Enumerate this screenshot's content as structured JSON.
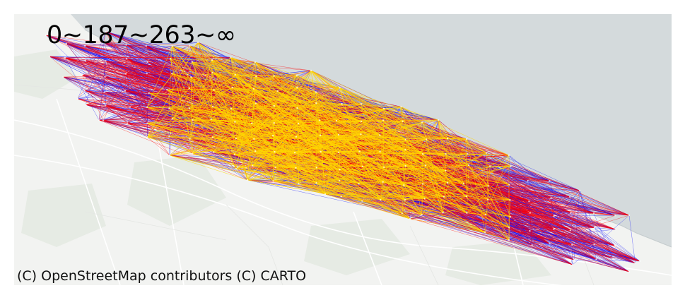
{
  "map": {
    "legend_label": "0~187~263~∞",
    "attribution": "(C) OpenStreetMap contributors (C) CARTO",
    "place_label": "",
    "colors": {
      "land": "#f2f3f1",
      "water": "#d4dadc",
      "park": "#e6ebe4",
      "road": "#ffffff",
      "band_low": "#0000ff",
      "band_mid": "#ff0000",
      "band_high": "#ffd700"
    },
    "flow_bands": [
      {
        "name": "0~187",
        "color": "#0000ff"
      },
      {
        "name": "187~263",
        "color": "#ff0000"
      },
      {
        "name": "263~∞",
        "color": "#ffd700"
      }
    ]
  }
}
